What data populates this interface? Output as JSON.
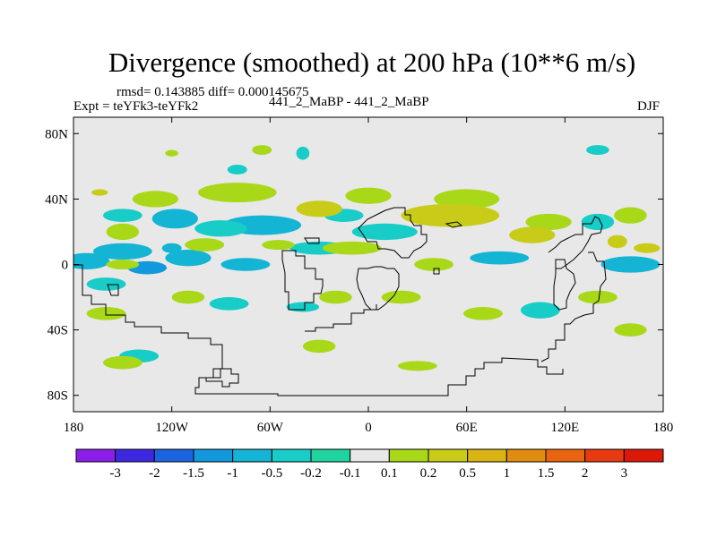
{
  "title": "Divergence (smoothed) at 200 hPa (10**6 m/s)",
  "stats": "rmsd= 0.143885 diff= 0.000145675",
  "expt": "Expt = teYFk3-teYFk2",
  "case": "441_2_MaBP - 441_2_MaBP",
  "season": "DJF",
  "chart_data": {
    "type": "heatmap",
    "title": "Divergence (smoothed) at 200 hPa (10**6 m/s)",
    "xlabel": "",
    "ylabel": "",
    "xlim": [
      -180,
      180
    ],
    "ylim": [
      -90,
      90
    ],
    "x_ticks": [
      {
        "value": -180,
        "label": "180"
      },
      {
        "value": -120,
        "label": "120W"
      },
      {
        "value": -60,
        "label": "60W"
      },
      {
        "value": 0,
        "label": "0"
      },
      {
        "value": 60,
        "label": "60E"
      },
      {
        "value": 120,
        "label": "120E"
      },
      {
        "value": 180,
        "label": "180"
      }
    ],
    "y_ticks": [
      {
        "value": 80,
        "label": "80N"
      },
      {
        "value": 40,
        "label": "40N"
      },
      {
        "value": 0,
        "label": "0"
      },
      {
        "value": -40,
        "label": "40S"
      },
      {
        "value": -80,
        "label": "80S"
      }
    ],
    "colorbar": {
      "labels": [
        "-3",
        "-2",
        "-1.5",
        "-1",
        "-0.5",
        "-0.2",
        "-0.1",
        "0.1",
        "0.2",
        "0.5",
        "1",
        "1.5",
        "2",
        "3"
      ],
      "colors": [
        "#8b1ee8",
        "#3c28e0",
        "#1a64e0",
        "#1298dc",
        "#14b4d4",
        "#18ccc8",
        "#20d4a0",
        "#e8e8e8",
        "#a8d818",
        "#c8cc18",
        "#d8b414",
        "#e08c10",
        "#e86410",
        "#e83a10",
        "#dc1808"
      ]
    },
    "blobs": [
      {
        "lon": -172,
        "lat": 2,
        "rx": 14,
        "ry": 5,
        "level": 4
      },
      {
        "lon": -150,
        "lat": 8,
        "rx": 18,
        "ry": 5,
        "level": 4
      },
      {
        "lon": -135,
        "lat": -2,
        "rx": 12,
        "ry": 4,
        "level": 3
      },
      {
        "lon": -110,
        "lat": 4,
        "rx": 14,
        "ry": 5,
        "level": 4
      },
      {
        "lon": -75,
        "lat": 0,
        "rx": 15,
        "ry": 4,
        "level": 4
      },
      {
        "lon": -65,
        "lat": 24,
        "rx": 24,
        "ry": 6,
        "level": 4
      },
      {
        "lon": -118,
        "lat": 28,
        "rx": 14,
        "ry": 6,
        "level": 4
      },
      {
        "lon": -150,
        "lat": 30,
        "rx": 12,
        "ry": 4,
        "level": 5
      },
      {
        "lon": -90,
        "lat": 22,
        "rx": 16,
        "ry": 5,
        "level": 5
      },
      {
        "lon": -30,
        "lat": 10,
        "rx": 18,
        "ry": 4,
        "level": 5
      },
      {
        "lon": 10,
        "lat": 20,
        "rx": 20,
        "ry": 5,
        "level": 5
      },
      {
        "lon": -15,
        "lat": 30,
        "rx": 12,
        "ry": 4,
        "level": 5
      },
      {
        "lon": 80,
        "lat": 4,
        "rx": 18,
        "ry": 4,
        "level": 4
      },
      {
        "lon": 160,
        "lat": 0,
        "rx": 18,
        "ry": 5,
        "level": 4
      },
      {
        "lon": 140,
        "lat": 26,
        "rx": 10,
        "ry": 5,
        "level": 5
      },
      {
        "lon": 105,
        "lat": -28,
        "rx": 12,
        "ry": 5,
        "level": 5
      },
      {
        "lon": -160,
        "lat": -12,
        "rx": 12,
        "ry": 4,
        "level": 5
      },
      {
        "lon": -85,
        "lat": -24,
        "rx": 12,
        "ry": 4,
        "level": 5
      },
      {
        "lon": -40,
        "lat": -26,
        "rx": 10,
        "ry": 3,
        "level": 5
      },
      {
        "lon": -140,
        "lat": -56,
        "rx": 12,
        "ry": 4,
        "level": 5
      },
      {
        "lon": 140,
        "lat": 70,
        "rx": 7,
        "ry": 3,
        "level": 5
      },
      {
        "lon": -40,
        "lat": 68,
        "rx": 4,
        "ry": 4,
        "level": 5
      },
      {
        "lon": -80,
        "lat": 58,
        "rx": 6,
        "ry": 3,
        "level": 5
      },
      {
        "lon": -120,
        "lat": 10,
        "rx": 6,
        "ry": 3,
        "level": 4
      },
      {
        "lon": -164,
        "lat": 44,
        "rx": 5,
        "ry": 2,
        "level": 9
      },
      {
        "lon": -65,
        "lat": 70,
        "rx": 6,
        "ry": 3,
        "level": 8
      },
      {
        "lon": -120,
        "lat": 68,
        "rx": 4,
        "ry": 2,
        "level": 8
      },
      {
        "lon": -80,
        "lat": 44,
        "rx": 24,
        "ry": 6,
        "level": 8
      },
      {
        "lon": -130,
        "lat": 40,
        "rx": 14,
        "ry": 5,
        "level": 8
      },
      {
        "lon": 60,
        "lat": 40,
        "rx": 20,
        "ry": 6,
        "level": 8
      },
      {
        "lon": 50,
        "lat": 30,
        "rx": 30,
        "ry": 7,
        "level": 9
      },
      {
        "lon": 0,
        "lat": 42,
        "rx": 14,
        "ry": 5,
        "level": 8
      },
      {
        "lon": -30,
        "lat": 34,
        "rx": 14,
        "ry": 5,
        "level": 9
      },
      {
        "lon": 110,
        "lat": 26,
        "rx": 14,
        "ry": 5,
        "level": 8
      },
      {
        "lon": 160,
        "lat": 30,
        "rx": 10,
        "ry": 5,
        "level": 8
      },
      {
        "lon": 152,
        "lat": 14,
        "rx": 6,
        "ry": 4,
        "level": 9
      },
      {
        "lon": -10,
        "lat": 10,
        "rx": 18,
        "ry": 4,
        "level": 8
      },
      {
        "lon": 40,
        "lat": 0,
        "rx": 12,
        "ry": 4,
        "level": 8
      },
      {
        "lon": 100,
        "lat": 18,
        "rx": 14,
        "ry": 5,
        "level": 9
      },
      {
        "lon": -150,
        "lat": 20,
        "rx": 10,
        "ry": 5,
        "level": 8
      },
      {
        "lon": -100,
        "lat": 12,
        "rx": 12,
        "ry": 4,
        "level": 8
      },
      {
        "lon": -55,
        "lat": 12,
        "rx": 10,
        "ry": 3,
        "level": 8
      },
      {
        "lon": 20,
        "lat": -20,
        "rx": 12,
        "ry": 4,
        "level": 8
      },
      {
        "lon": -20,
        "lat": -20,
        "rx": 10,
        "ry": 4,
        "level": 8
      },
      {
        "lon": -160,
        "lat": -30,
        "rx": 12,
        "ry": 4,
        "level": 8
      },
      {
        "lon": -110,
        "lat": -20,
        "rx": 10,
        "ry": 4,
        "level": 8
      },
      {
        "lon": 70,
        "lat": -30,
        "rx": 12,
        "ry": 4,
        "level": 8
      },
      {
        "lon": 140,
        "lat": -20,
        "rx": 12,
        "ry": 4,
        "level": 8
      },
      {
        "lon": 160,
        "lat": -40,
        "rx": 10,
        "ry": 4,
        "level": 8
      },
      {
        "lon": -150,
        "lat": -60,
        "rx": 12,
        "ry": 4,
        "level": 8
      },
      {
        "lon": 30,
        "lat": -62,
        "rx": 12,
        "ry": 3,
        "level": 8
      },
      {
        "lon": -30,
        "lat": -50,
        "rx": 10,
        "ry": 4,
        "level": 8
      },
      {
        "lon": -150,
        "lat": 0,
        "rx": 10,
        "ry": 3,
        "level": 8
      },
      {
        "lon": 170,
        "lat": 10,
        "rx": 8,
        "ry": 3,
        "level": 9
      }
    ]
  }
}
